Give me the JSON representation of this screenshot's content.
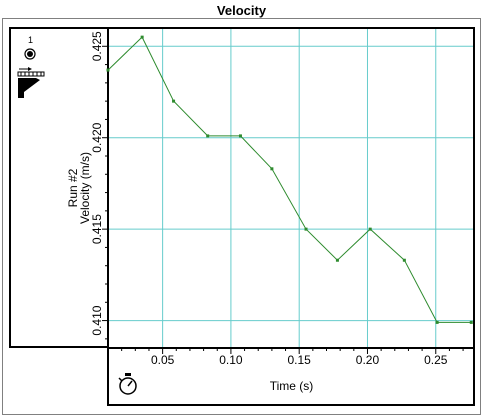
{
  "chart_data": {
    "type": "line",
    "title": "Velocity",
    "xlabel": "Time (s)",
    "ylabel": "Velocity (m/s)",
    "run_label": "Run #2",
    "x_ticks": [
      "0.05",
      "0.10",
      "0.15",
      "0.20",
      "0.25"
    ],
    "y_ticks": [
      "0.425",
      "0.420",
      "0.415",
      "0.410"
    ],
    "xlim": [
      0.01,
      0.278
    ],
    "ylim": [
      0.4085,
      0.426
    ],
    "grid": true,
    "colors": {
      "line": "#2e8b2e",
      "grid": "#66cccc",
      "axis": "#000000"
    },
    "series": [
      {
        "x": [
          0.01,
          0.035,
          0.058,
          0.083,
          0.107,
          0.13,
          0.155,
          0.178,
          0.202,
          0.227,
          0.251,
          0.276
        ],
        "y": [
          0.4237,
          0.4255,
          0.422,
          0.4201,
          0.4201,
          0.4183,
          0.415,
          0.4133,
          0.415,
          0.4133,
          0.4099,
          0.4099
        ]
      }
    ]
  },
  "toolbar": {
    "tool_number": "1",
    "sensor_icon": "sensor-icon",
    "graph_tool_icon": "graph-tool-icon",
    "stopwatch_icon": "stopwatch-icon"
  }
}
